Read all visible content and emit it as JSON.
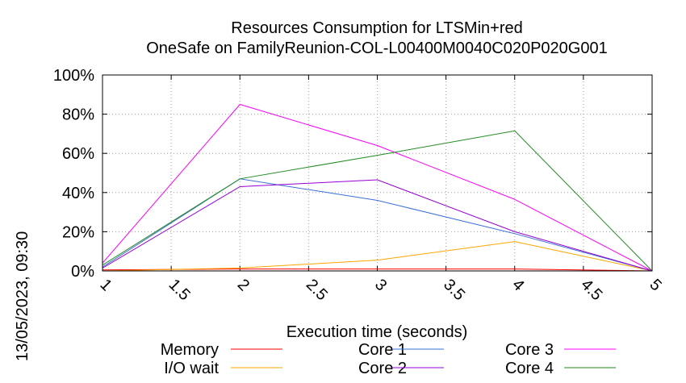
{
  "chart_data": {
    "type": "line",
    "title": "Resources Consumption for LTSMin+red",
    "subtitle": "OneSafe on FamilyReunion-COL-L00400M0040C020P020G001",
    "xlabel": "Execution time (seconds)",
    "ylabel": "",
    "side_label": "13/05/2023, 09:30",
    "xlim": [
      1,
      5
    ],
    "ylim": [
      0,
      100
    ],
    "x_ticks": [
      "1",
      "1.5",
      "2",
      "2.5",
      "3",
      "3.5",
      "4",
      "4.5",
      "5"
    ],
    "y_ticks": [
      "0%",
      "20%",
      "40%",
      "60%",
      "80%",
      "100%"
    ],
    "grid": true,
    "legend_position": "bottom",
    "x": [
      1,
      2,
      3,
      4,
      5
    ],
    "series": [
      {
        "name": "Memory",
        "color": "#ff0000",
        "values": [
          0.5,
          1,
          1,
          1,
          0
        ]
      },
      {
        "name": "I/O wait",
        "color": "#ffa500",
        "values": [
          0,
          1.5,
          5.5,
          15,
          0
        ]
      },
      {
        "name": "Core 1",
        "color": "#3a6fd8",
        "values": [
          2,
          47,
          36,
          19,
          0
        ]
      },
      {
        "name": "Core 2",
        "color": "#9400d3",
        "values": [
          1.5,
          43,
          46.5,
          20,
          0
        ]
      },
      {
        "name": "Core 3",
        "color": "#ff00ff",
        "values": [
          4,
          85,
          64,
          36.5,
          0
        ]
      },
      {
        "name": "Core 4",
        "color": "#228b22",
        "values": [
          3,
          47,
          59,
          71.5,
          0
        ]
      }
    ]
  }
}
